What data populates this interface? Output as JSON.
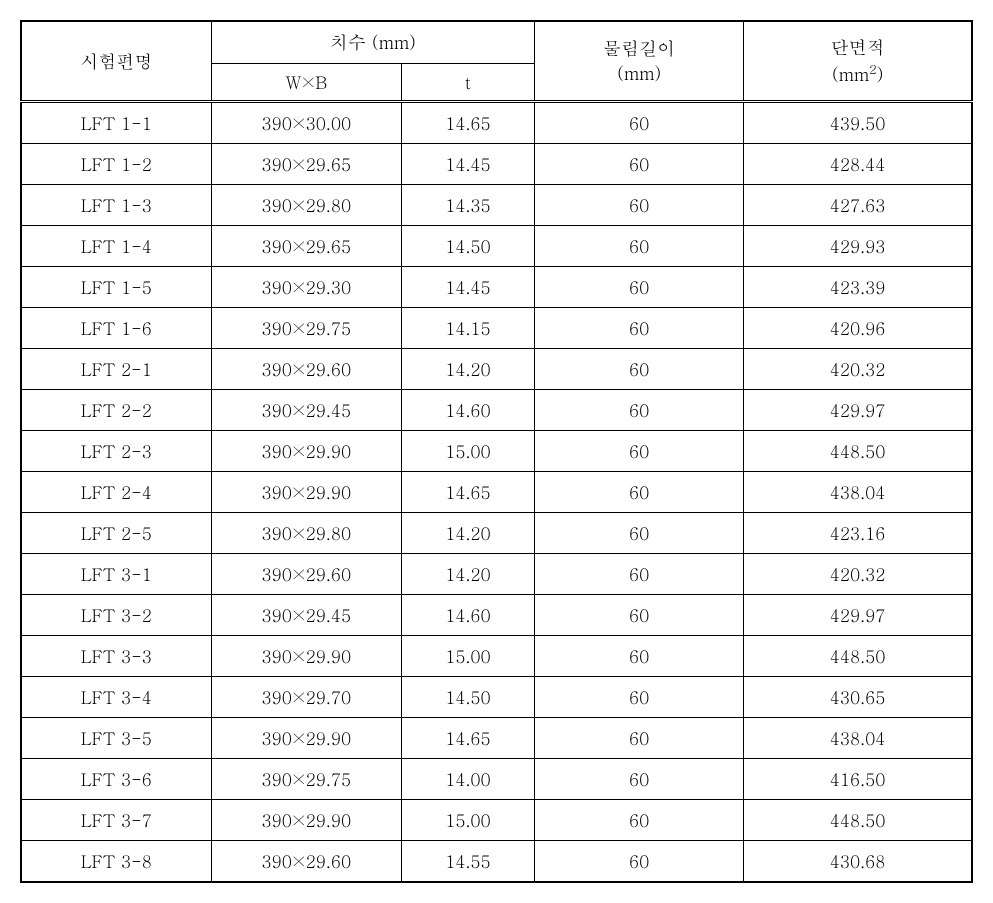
{
  "table": {
    "columns": {
      "col0": "시험편명",
      "col1_group": "치수 (mm)",
      "col1_sub0": "W×B",
      "col1_sub1": "t",
      "col2_line1": "물림길이",
      "col2_line2": "(mm)",
      "col3_line1": "단면적",
      "col3_unit_prefix": "(mm",
      "col3_unit_sup": "2",
      "col3_unit_suffix": ")"
    },
    "col_widths": [
      "20%",
      "20%",
      "14%",
      "22%",
      "24%"
    ],
    "border_color": "#000000",
    "background": "#ffffff",
    "header_fontsize": 18,
    "body_fontsize": 17,
    "rows": [
      [
        "LFT 1-1",
        "390×30.00",
        "14.65",
        "60",
        "439.50"
      ],
      [
        "LFT 1-2",
        "390×29.65",
        "14.45",
        "60",
        "428.44"
      ],
      [
        "LFT 1-3",
        "390×29.80",
        "14.35",
        "60",
        "427.63"
      ],
      [
        "LFT 1-4",
        "390×29.65",
        "14.50",
        "60",
        "429.93"
      ],
      [
        "LFT 1-5",
        "390×29.30",
        "14.45",
        "60",
        "423.39"
      ],
      [
        "LFT 1-6",
        "390×29.75",
        "14.15",
        "60",
        "420.96"
      ],
      [
        "LFT 2-1",
        "390×29.60",
        "14.20",
        "60",
        "420.32"
      ],
      [
        "LFT 2-2",
        "390×29.45",
        "14.60",
        "60",
        "429.97"
      ],
      [
        "LFT 2-3",
        "390×29.90",
        "15.00",
        "60",
        "448.50"
      ],
      [
        "LFT 2-4",
        "390×29.90",
        "14.65",
        "60",
        "438.04"
      ],
      [
        "LFT 2-5",
        "390×29.80",
        "14.20",
        "60",
        "423.16"
      ],
      [
        "LFT 3-1",
        "390×29.60",
        "14.20",
        "60",
        "420.32"
      ],
      [
        "LFT 3-2",
        "390×29.45",
        "14.60",
        "60",
        "429.97"
      ],
      [
        "LFT 3-3",
        "390×29.90",
        "15.00",
        "60",
        "448.50"
      ],
      [
        "LFT 3-4",
        "390×29.70",
        "14.50",
        "60",
        "430.65"
      ],
      [
        "LFT 3-5",
        "390×29.90",
        "14.65",
        "60",
        "438.04"
      ],
      [
        "LFT 3-6",
        "390×29.75",
        "14.00",
        "60",
        "416.50"
      ],
      [
        "LFT 3-7",
        "390×29.90",
        "15.00",
        "60",
        "448.50"
      ],
      [
        "LFT 3-8",
        "390×29.60",
        "14.55",
        "60",
        "430.68"
      ]
    ]
  }
}
